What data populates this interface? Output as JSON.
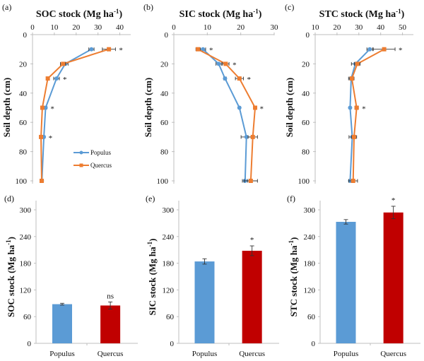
{
  "colors": {
    "populus_line": "#5B9BD5",
    "quercus_line": "#ED7D31",
    "populus_bar": "#5B9BD5",
    "quercus_bar": "#C00000",
    "axis": "#BFBFBF"
  },
  "chart_data": [
    {
      "panel": "(a)",
      "type": "line",
      "title": "SOC stock (Mg ha-1)",
      "title_main": "SOC stock (Mg ha",
      "title_sup": "-1",
      "title_end": ")",
      "xlabel": "SOC stock (Mg ha-1)",
      "ylabel": "Soil depth (cm)",
      "xlim": [
        0,
        45
      ],
      "xticks": [
        0,
        10,
        20,
        30,
        40
      ],
      "ylim": [
        0,
        100
      ],
      "yticks": [
        0,
        20,
        40,
        60,
        80,
        100
      ],
      "y_inverted": true,
      "legend": {
        "placement": "lower-right",
        "entries": [
          "Populus",
          "Quercus"
        ]
      },
      "depths": [
        10,
        20,
        30,
        50,
        70,
        100
      ],
      "series": [
        {
          "name": "Populus",
          "values": [
            27,
            15,
            11,
            6,
            5.2,
            4.3
          ],
          "errors": [
            1.2,
            1.3,
            1.3,
            0.6,
            0.5,
            0.3
          ]
        },
        {
          "name": "Quercus",
          "values": [
            35,
            14,
            7,
            4.5,
            3.9,
            4.2
          ],
          "errors": [
            3,
            1.2,
            0.6,
            0.6,
            0.5,
            0.3
          ]
        }
      ],
      "significance": [
        {
          "depth": 10,
          "label": "*"
        },
        {
          "depth": 30,
          "label": "*"
        },
        {
          "depth": 50,
          "label": "*"
        },
        {
          "depth": 70,
          "label": "*"
        }
      ]
    },
    {
      "panel": "(b)",
      "type": "line",
      "title": "SIC stock (Mg ha-1)",
      "title_main": "SIC stock (Mg ha",
      "title_sup": "-1",
      "title_end": ")",
      "xlabel": "SIC stock (Mg ha-1)",
      "ylabel": "Soil depth (cm)",
      "xlim": [
        0,
        30
      ],
      "xticks": [
        0,
        10,
        20,
        30
      ],
      "ylim": [
        0,
        100
      ],
      "yticks": [
        0,
        20,
        40,
        60,
        80,
        100
      ],
      "y_inverted": true,
      "depths": [
        10,
        20,
        30,
        50,
        70,
        100
      ],
      "series": [
        {
          "name": "Populus",
          "values": [
            8.7,
            13.4,
            15.3,
            19.6,
            21.7,
            21.3
          ],
          "errors": [
            0.8,
            0.8,
            0.4,
            0.3,
            1.6,
            0.8
          ]
        },
        {
          "name": "Quercus",
          "values": [
            7.2,
            15.5,
            19.6,
            24.3,
            23.6,
            23.0
          ],
          "errors": [
            0.6,
            1.0,
            1.2,
            0.3,
            1.4,
            2.0
          ]
        }
      ],
      "significance": [
        {
          "depth": 10,
          "label": "*"
        },
        {
          "depth": 20,
          "label": "*"
        },
        {
          "depth": 30,
          "label": "*"
        },
        {
          "depth": 50,
          "label": "*"
        }
      ]
    },
    {
      "panel": "(c)",
      "type": "line",
      "title": "STC stock (Mg ha-1)",
      "title_main": "STC stock (Mg ha",
      "title_sup": "-1",
      "title_end": ")",
      "xlabel": "STC stock (Mg ha-1)",
      "ylabel": "Soil depth (cm)",
      "xlim": [
        10,
        55
      ],
      "xticks": [
        10,
        20,
        30,
        40,
        50
      ],
      "ylim": [
        0,
        100
      ],
      "yticks": [
        0,
        20,
        40,
        60,
        80,
        100
      ],
      "y_inverted": true,
      "depths": [
        10,
        20,
        30,
        50,
        70,
        100
      ],
      "series": [
        {
          "name": "Populus",
          "values": [
            35,
            28.4,
            26.5,
            26,
            27,
            26
          ],
          "errors": [
            1.3,
            1.8,
            1.2,
            0.4,
            1.5,
            0.5
          ]
        },
        {
          "name": "Quercus",
          "values": [
            41.6,
            29.3,
            26.8,
            29,
            27.8,
            27.4
          ],
          "errors": [
            5,
            1.3,
            1.0,
            0.8,
            1.2,
            2.0
          ]
        }
      ],
      "significance": [
        {
          "depth": 10,
          "label": "*"
        },
        {
          "depth": 50,
          "label": "*"
        }
      ]
    },
    {
      "panel": "(d)",
      "type": "bar",
      "ylabel": "SOC stock (Mg ha-1)",
      "ylabel_main": "SOC stock (Mg ha",
      "ylabel_sup": "-1",
      "ylabel_end": ")",
      "categories": [
        "Populus",
        "Quercus"
      ],
      "values": [
        88,
        85
      ],
      "errors": [
        2,
        8
      ],
      "ylim": [
        0,
        300
      ],
      "yticks": [
        0,
        60,
        120,
        180,
        240,
        300
      ],
      "annotation": "ns"
    },
    {
      "panel": "(e)",
      "type": "bar",
      "ylabel": "SIC stock (Mg ha-1)",
      "ylabel_main": "SIC stock (Mg ha",
      "ylabel_sup": "-1",
      "ylabel_end": ")",
      "categories": [
        "Populus",
        "Quercus"
      ],
      "values": [
        184,
        208
      ],
      "errors": [
        6,
        11
      ],
      "ylim": [
        0,
        300
      ],
      "yticks": [
        0,
        60,
        120,
        180,
        240,
        300
      ],
      "annotation": "*"
    },
    {
      "panel": "(f)",
      "type": "bar",
      "ylabel": "STC stock (Mg ha-1)",
      "ylabel_main": "STC stock (Mg ha",
      "ylabel_sup": "-1",
      "ylabel_end": ")",
      "categories": [
        "Populus",
        "Quercus"
      ],
      "values": [
        273,
        294
      ],
      "errors": [
        5,
        14
      ],
      "ylim": [
        0,
        300
      ],
      "yticks": [
        0,
        60,
        120,
        180,
        240,
        300
      ],
      "annotation": "*"
    }
  ]
}
